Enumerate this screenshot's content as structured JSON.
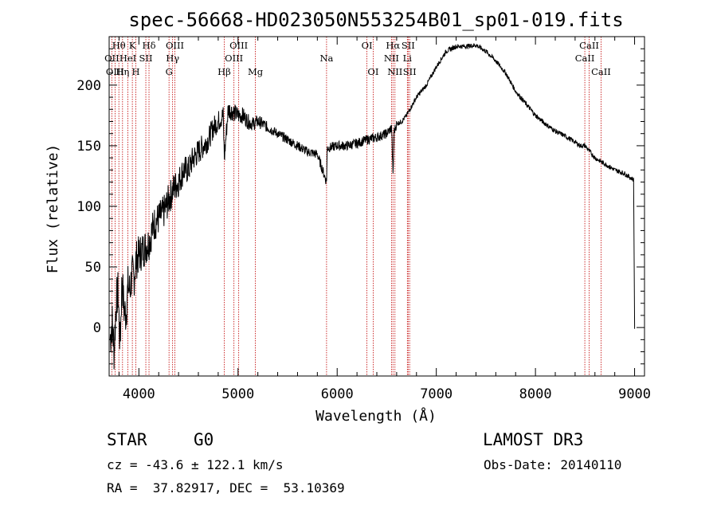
{
  "chart_data": {
    "type": "line",
    "title": "spec-56668-HD023050N553254B01_sp01-019.fits",
    "xlabel": "Wavelength (Å)",
    "ylabel": "Flux (relative)",
    "xlim": [
      3700,
      9100
    ],
    "ylim": [
      -40,
      240
    ],
    "xticks": [
      4000,
      5000,
      6000,
      7000,
      8000,
      9000
    ],
    "yticks": [
      0,
      50,
      100,
      150,
      200
    ],
    "grid": false,
    "spectrum": {
      "name": "flux",
      "x": [
        3710,
        3730,
        3750,
        3770,
        3790,
        3810,
        3830,
        3850,
        3870,
        3890,
        3910,
        3930,
        3950,
        3970,
        4000,
        4050,
        4100,
        4150,
        4200,
        4250,
        4300,
        4350,
        4400,
        4450,
        4500,
        4550,
        4600,
        4650,
        4700,
        4750,
        4800,
        4850,
        4862,
        4900,
        4950,
        5000,
        5050,
        5100,
        5150,
        5200,
        5250,
        5300,
        5400,
        5500,
        5600,
        5700,
        5800,
        5893,
        5900,
        6000,
        6100,
        6200,
        6300,
        6400,
        6500,
        6550,
        6563,
        6575,
        6600,
        6650,
        6700,
        6800,
        6900,
        7000,
        7100,
        7200,
        7300,
        7400,
        7500,
        7600,
        7700,
        7800,
        7900,
        8000,
        8100,
        8200,
        8300,
        8400,
        8450,
        8500,
        8550,
        8600,
        8700,
        8800,
        8900,
        8950,
        8990,
        9000
      ],
      "y": [
        -10,
        5,
        -20,
        20,
        30,
        -15,
        40,
        15,
        10,
        35,
        30,
        45,
        40,
        55,
        60,
        65,
        70,
        85,
        90,
        95,
        105,
        115,
        120,
        130,
        130,
        140,
        145,
        150,
        155,
        165,
        170,
        175,
        140,
        180,
        178,
        175,
        175,
        170,
        168,
        170,
        168,
        165,
        160,
        155,
        150,
        145,
        143,
        120,
        148,
        150,
        150,
        152,
        155,
        157,
        160,
        165,
        125,
        162,
        168,
        170,
        175,
        190,
        200,
        215,
        228,
        232,
        232,
        233,
        228,
        220,
        210,
        195,
        185,
        175,
        168,
        162,
        158,
        153,
        150,
        150,
        145,
        140,
        135,
        130,
        127,
        124,
        122,
        -1
      ]
    },
    "line_markers": [
      {
        "label": "Hθ",
        "x": 3798,
        "row": 1
      },
      {
        "label": "OII",
        "x": 3727,
        "row": 2
      },
      {
        "label": "OIII",
        "x": 3760,
        "row": 3
      },
      {
        "label": "Hη",
        "x": 3835,
        "row": 3
      },
      {
        "label": "HeI",
        "x": 3889,
        "row": 2
      },
      {
        "label": "K",
        "x": 3934,
        "row": 1
      },
      {
        "label": "H",
        "x": 3969,
        "row": 3
      },
      {
        "label": "SII",
        "x": 4070,
        "row": 2
      },
      {
        "label": "Hδ",
        "x": 4102,
        "row": 1
      },
      {
        "label": "OIII",
        "x": 4363,
        "row": 1
      },
      {
        "label": "Hγ",
        "x": 4340,
        "row": 2
      },
      {
        "label": "G",
        "x": 4304,
        "row": 3
      },
      {
        "label": "Hβ",
        "x": 4861,
        "row": 3
      },
      {
        "label": "OIII",
        "x": 5007,
        "row": 1
      },
      {
        "label": "OIII",
        "x": 4959,
        "row": 2
      },
      {
        "label": "Mg",
        "x": 5175,
        "row": 3
      },
      {
        "label": "Na",
        "x": 5893,
        "row": 2
      },
      {
        "label": "OI",
        "x": 6300,
        "row": 1
      },
      {
        "label": "OI",
        "x": 6363,
        "row": 3
      },
      {
        "label": "Hα",
        "x": 6563,
        "row": 1
      },
      {
        "label": "NII",
        "x": 6548,
        "row": 2
      },
      {
        "label": "NII",
        "x": 6583,
        "row": 3
      },
      {
        "label": "SII",
        "x": 6716,
        "row": 1
      },
      {
        "label": "Li",
        "x": 6708,
        "row": 2
      },
      {
        "label": "SII",
        "x": 6731,
        "row": 3
      },
      {
        "label": "CaII",
        "x": 8542,
        "row": 1
      },
      {
        "label": "CaII",
        "x": 8498,
        "row": 2
      },
      {
        "label": "CaII",
        "x": 8662,
        "row": 3
      }
    ]
  },
  "info": {
    "object_class": "STAR",
    "subclass": "G0",
    "survey": "LAMOST DR3",
    "redshift_line": "cz = -43.6 ± 122.1 km/s",
    "obs_date_line": "Obs-Date: 20140110",
    "coords_line": "RA =  37.82917, DEC =  53.10369"
  }
}
